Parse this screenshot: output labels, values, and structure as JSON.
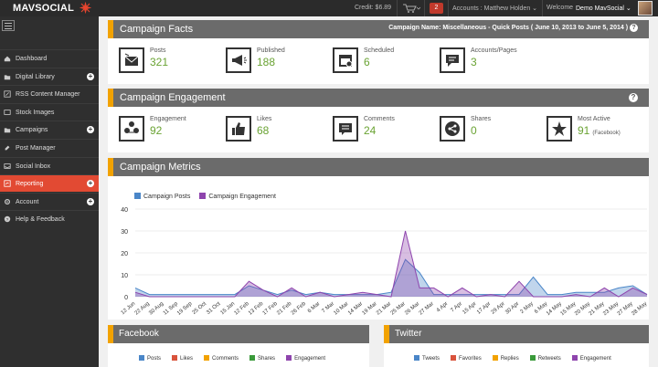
{
  "topbar": {
    "logo_text": "MAVSOCIAL",
    "credit": "Credit: $6.89",
    "notification_count": "2",
    "accounts": "Accounts : Matthew Holden",
    "welcome": "Welcome",
    "user": "Demo MavSocial"
  },
  "sidebar": {
    "items": [
      {
        "label": "Dashboard",
        "icon": "home-icon",
        "plus": false
      },
      {
        "label": "Digital Library",
        "icon": "folder-icon",
        "plus": true
      },
      {
        "label": "RSS Content Manager",
        "icon": "rss-icon",
        "plus": false
      },
      {
        "label": "Stock Images",
        "icon": "image-icon",
        "plus": false
      },
      {
        "label": "Campaigns",
        "icon": "folder-icon",
        "plus": true
      },
      {
        "label": "Post Manager",
        "icon": "edit-icon",
        "plus": false
      },
      {
        "label": "Social Inbox",
        "icon": "inbox-icon",
        "plus": false
      },
      {
        "label": "Reporting",
        "icon": "report-icon",
        "plus": true
      },
      {
        "label": "Account",
        "icon": "gear-icon",
        "plus": true
      },
      {
        "label": "Help & Feedback",
        "icon": "help-icon",
        "plus": false
      }
    ]
  },
  "campaign_facts": {
    "title": "Campaign Facts",
    "info": "Campaign Name: Miscellaneous - Quick Posts ( June 10, 2013 to June 5, 2014 )",
    "stats": [
      {
        "label": "Posts",
        "value": "321",
        "icon": "mail-icon"
      },
      {
        "label": "Published",
        "value": "188",
        "icon": "megaphone-icon"
      },
      {
        "label": "Scheduled",
        "value": "6",
        "icon": "calendar-icon"
      },
      {
        "label": "Accounts/Pages",
        "value": "3",
        "icon": "chat-icon"
      }
    ]
  },
  "campaign_engagement": {
    "title": "Campaign Engagement",
    "stats": [
      {
        "label": "Engagement",
        "value": "92",
        "icon": "people-icon",
        "sub": ""
      },
      {
        "label": "Likes",
        "value": "68",
        "icon": "thumbs-up-icon",
        "sub": ""
      },
      {
        "label": "Comments",
        "value": "24",
        "icon": "comment-icon",
        "sub": ""
      },
      {
        "label": "Shares",
        "value": "0",
        "icon": "share-icon",
        "sub": ""
      },
      {
        "label": "Most Active",
        "value": "91",
        "icon": "star-icon",
        "sub": "(Facebook)"
      }
    ]
  },
  "campaign_metrics": {
    "title": "Campaign Metrics"
  },
  "chart_data": {
    "type": "area",
    "title": "",
    "xlabel": "",
    "ylabel": "",
    "ylim": [
      0,
      40
    ],
    "yticks": [
      0,
      10,
      20,
      30,
      40
    ],
    "categories": [
      "12 Jun",
      "22 Aug",
      "30 Aug",
      "11 Sep",
      "19 Sep",
      "25 Oct",
      "31 Oct",
      "15 Jan",
      "12 Feb",
      "13 Feb",
      "17 Feb",
      "21 Feb",
      "26 Feb",
      "6 Mar",
      "7 Mar",
      "10 Mar",
      "14 Mar",
      "19 Mar",
      "21 Mar",
      "25 Mar",
      "26 Mar",
      "27 Mar",
      "4 Apr",
      "7 Apr",
      "15 Apr",
      "17 Apr",
      "29 Apr",
      "30 Apr",
      "2 May",
      "6 May",
      "14 May",
      "15 May",
      "20 May",
      "21 May",
      "23 May",
      "27 May",
      "28 May"
    ],
    "xtick_labels": [
      "12 Jun",
      "22 Aug",
      "30 Aug",
      "11 Sep",
      "19 Sep",
      "25 Oct",
      "31 Oct",
      "15 Jan",
      "12 Feb",
      "13 Feb",
      "17 Feb",
      "21 Feb",
      "26 Feb",
      "6 Mar",
      "7 Mar",
      "10 Mar",
      "14 Mar",
      "19 Mar",
      "21 Mar",
      "25 Mar",
      "26 Mar",
      "27 Mar",
      "4 Apr",
      "7 Apr",
      "15 Apr",
      "17 Apr",
      "29 Apr",
      "30 Apr",
      "2 May",
      "6 May",
      "14 May",
      "15 May",
      "20 May",
      "21 May",
      "23 May",
      "27 May",
      "28 May"
    ],
    "series": [
      {
        "name": "Campaign Posts",
        "color": "#4a86c8",
        "values": [
          4,
          1,
          1,
          1,
          1,
          1,
          1,
          1,
          5,
          3,
          1,
          3,
          1,
          2,
          1,
          1,
          1,
          1,
          2,
          17,
          11,
          1,
          1,
          1,
          1,
          1,
          1,
          1,
          9,
          1,
          1,
          2,
          2,
          2,
          4,
          5,
          1
        ]
      },
      {
        "name": "Campaign Engagement",
        "color": "#8e44ad",
        "values": [
          2,
          0,
          0,
          0,
          0,
          0,
          0,
          0,
          7,
          3,
          0,
          4,
          0,
          2,
          0,
          1,
          2,
          1,
          0,
          30,
          4,
          4,
          0,
          4,
          0,
          1,
          0,
          7,
          0,
          0,
          0,
          1,
          0,
          4,
          0,
          4,
          1
        ]
      }
    ],
    "legend_position": "top-left",
    "grid": true
  },
  "facebook_panel": {
    "title": "Facebook",
    "legend": [
      {
        "label": "Posts",
        "color": "#4a86c8"
      },
      {
        "label": "Likes",
        "color": "#d9533c"
      },
      {
        "label": "Comments",
        "color": "#f2a200"
      },
      {
        "label": "Shares",
        "color": "#3a9a3a"
      },
      {
        "label": "Engagement",
        "color": "#8e44ad"
      }
    ]
  },
  "twitter_panel": {
    "title": "Twitter",
    "legend": [
      {
        "label": "Tweets",
        "color": "#4a86c8"
      },
      {
        "label": "Favorites",
        "color": "#d9533c"
      },
      {
        "label": "Replies",
        "color": "#f2a200"
      },
      {
        "label": "Retweets",
        "color": "#3a9a3a"
      },
      {
        "label": "Engagement",
        "color": "#8e44ad"
      }
    ]
  }
}
